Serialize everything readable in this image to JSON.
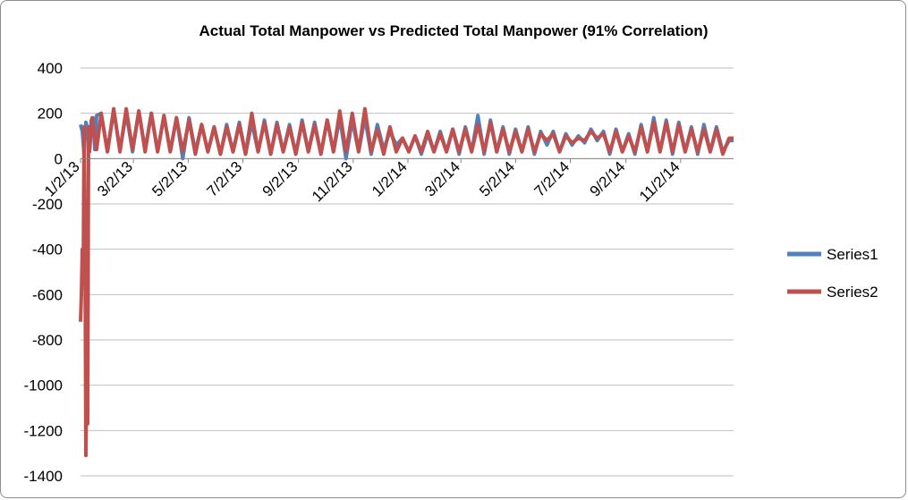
{
  "chart_data": {
    "type": "line",
    "title": "Actual Total Manpower vs Predicted Total Manpower (91% Correlation)",
    "xlabel": "",
    "ylabel": "",
    "ylim": [
      -1400,
      400
    ],
    "yticks": [
      400,
      200,
      0,
      -200,
      -400,
      -600,
      -800,
      -1000,
      -1200,
      -1400
    ],
    "ytick_labels": [
      "400",
      "200",
      "0",
      "-200",
      "-400",
      "-600",
      "-800",
      "-1000",
      "-1200",
      "-1400"
    ],
    "x_range": [
      "2013-01-02",
      "2014-12-31"
    ],
    "x_tick_labels": [
      "1/2/13",
      "3/2/13",
      "5/2/13",
      "7/2/13",
      "9/2/13",
      "11/2/13",
      "1/2/14",
      "3/2/14",
      "5/2/14",
      "7/2/14",
      "9/2/14",
      "11/2/14"
    ],
    "x_tick_dates": [
      "2013-01-02",
      "2013-03-02",
      "2013-05-02",
      "2013-07-02",
      "2013-09-02",
      "2013-11-02",
      "2014-01-02",
      "2014-03-02",
      "2014-05-02",
      "2014-07-02",
      "2014-09-02",
      "2014-11-02"
    ],
    "grid": true,
    "legend_position": "right",
    "series": [
      {
        "name": "Series1",
        "color": "#4f81bd",
        "points": [
          [
            "2013-01-02",
            150
          ],
          [
            "2013-01-04",
            120
          ],
          [
            "2013-01-06",
            20
          ],
          [
            "2013-01-08",
            160
          ],
          [
            "2013-01-10",
            130
          ],
          [
            "2013-01-12",
            30
          ],
          [
            "2013-01-14",
            170
          ],
          [
            "2013-01-16",
            180
          ],
          [
            "2013-01-18",
            40
          ],
          [
            "2013-01-20",
            190
          ],
          [
            "2013-01-25",
            200
          ],
          [
            "2013-02-01",
            30
          ],
          [
            "2013-02-08",
            210
          ],
          [
            "2013-02-15",
            40
          ],
          [
            "2013-02-22",
            200
          ],
          [
            "2013-03-01",
            30
          ],
          [
            "2013-03-08",
            210
          ],
          [
            "2013-03-15",
            40
          ],
          [
            "2013-03-22",
            200
          ],
          [
            "2013-03-29",
            30
          ],
          [
            "2013-04-05",
            190
          ],
          [
            "2013-04-12",
            30
          ],
          [
            "2013-04-19",
            180
          ],
          [
            "2013-04-26",
            0
          ],
          [
            "2013-05-03",
            180
          ],
          [
            "2013-05-10",
            30
          ],
          [
            "2013-05-17",
            150
          ],
          [
            "2013-05-24",
            30
          ],
          [
            "2013-05-31",
            140
          ],
          [
            "2013-06-07",
            20
          ],
          [
            "2013-06-14",
            150
          ],
          [
            "2013-06-21",
            30
          ],
          [
            "2013-06-28",
            160
          ],
          [
            "2013-07-05",
            20
          ],
          [
            "2013-07-12",
            160
          ],
          [
            "2013-07-19",
            30
          ],
          [
            "2013-07-26",
            170
          ],
          [
            "2013-08-02",
            20
          ],
          [
            "2013-08-09",
            160
          ],
          [
            "2013-08-16",
            30
          ],
          [
            "2013-08-23",
            150
          ],
          [
            "2013-08-30",
            20
          ],
          [
            "2013-09-06",
            170
          ],
          [
            "2013-09-13",
            30
          ],
          [
            "2013-09-20",
            160
          ],
          [
            "2013-09-27",
            20
          ],
          [
            "2013-10-04",
            170
          ],
          [
            "2013-10-11",
            30
          ],
          [
            "2013-10-18",
            180
          ],
          [
            "2013-10-25",
            0
          ],
          [
            "2013-11-01",
            170
          ],
          [
            "2013-11-08",
            30
          ],
          [
            "2013-11-15",
            180
          ],
          [
            "2013-11-22",
            20
          ],
          [
            "2013-11-29",
            150
          ],
          [
            "2013-12-06",
            40
          ],
          [
            "2013-12-13",
            120
          ],
          [
            "2013-12-20",
            60
          ],
          [
            "2013-12-27",
            90
          ],
          [
            "2014-01-03",
            30
          ],
          [
            "2014-01-10",
            100
          ],
          [
            "2014-01-17",
            20
          ],
          [
            "2014-01-24",
            110
          ],
          [
            "2014-01-31",
            30
          ],
          [
            "2014-02-07",
            120
          ],
          [
            "2014-02-14",
            30
          ],
          [
            "2014-02-21",
            130
          ],
          [
            "2014-02-28",
            20
          ],
          [
            "2014-03-07",
            140
          ],
          [
            "2014-03-14",
            30
          ],
          [
            "2014-03-21",
            190
          ],
          [
            "2014-03-28",
            20
          ],
          [
            "2014-04-04",
            170
          ],
          [
            "2014-04-11",
            30
          ],
          [
            "2014-04-18",
            140
          ],
          [
            "2014-04-25",
            20
          ],
          [
            "2014-05-02",
            130
          ],
          [
            "2014-05-09",
            30
          ],
          [
            "2014-05-16",
            140
          ],
          [
            "2014-05-23",
            20
          ],
          [
            "2014-05-30",
            120
          ],
          [
            "2014-06-06",
            60
          ],
          [
            "2014-06-13",
            120
          ],
          [
            "2014-06-20",
            30
          ],
          [
            "2014-06-27",
            110
          ],
          [
            "2014-07-04",
            60
          ],
          [
            "2014-07-11",
            100
          ],
          [
            "2014-07-18",
            70
          ],
          [
            "2014-07-25",
            130
          ],
          [
            "2014-08-01",
            80
          ],
          [
            "2014-08-08",
            120
          ],
          [
            "2014-08-15",
            20
          ],
          [
            "2014-08-22",
            130
          ],
          [
            "2014-08-29",
            30
          ],
          [
            "2014-09-05",
            110
          ],
          [
            "2014-09-12",
            20
          ],
          [
            "2014-09-19",
            150
          ],
          [
            "2014-09-26",
            30
          ],
          [
            "2014-10-03",
            180
          ],
          [
            "2014-10-10",
            30
          ],
          [
            "2014-10-17",
            170
          ],
          [
            "2014-10-24",
            20
          ],
          [
            "2014-10-31",
            160
          ],
          [
            "2014-11-07",
            30
          ],
          [
            "2014-11-14",
            140
          ],
          [
            "2014-11-21",
            20
          ],
          [
            "2014-11-28",
            150
          ],
          [
            "2014-12-05",
            30
          ],
          [
            "2014-12-12",
            140
          ],
          [
            "2014-12-19",
            30
          ],
          [
            "2014-12-26",
            80
          ],
          [
            "2014-12-31",
            80
          ]
        ]
      },
      {
        "name": "Series2",
        "color": "#c0504d",
        "points": [
          [
            "2013-01-02",
            -720
          ],
          [
            "2013-01-03",
            -600
          ],
          [
            "2013-01-04",
            -400
          ],
          [
            "2013-01-05",
            -560
          ],
          [
            "2013-01-06",
            140
          ],
          [
            "2013-01-07",
            -300
          ],
          [
            "2013-01-08",
            -1310
          ],
          [
            "2013-01-09",
            -900
          ],
          [
            "2013-01-10",
            -1170
          ],
          [
            "2013-01-11",
            140
          ],
          [
            "2013-01-12",
            30
          ],
          [
            "2013-01-15",
            180
          ],
          [
            "2013-01-20",
            40
          ],
          [
            "2013-01-25",
            200
          ],
          [
            "2013-02-01",
            30
          ],
          [
            "2013-02-08",
            220
          ],
          [
            "2013-02-15",
            30
          ],
          [
            "2013-02-22",
            220
          ],
          [
            "2013-03-01",
            40
          ],
          [
            "2013-03-08",
            210
          ],
          [
            "2013-03-15",
            30
          ],
          [
            "2013-03-22",
            200
          ],
          [
            "2013-03-29",
            30
          ],
          [
            "2013-04-05",
            190
          ],
          [
            "2013-04-12",
            30
          ],
          [
            "2013-04-19",
            180
          ],
          [
            "2013-04-26",
            30
          ],
          [
            "2013-05-03",
            170
          ],
          [
            "2013-05-10",
            20
          ],
          [
            "2013-05-17",
            150
          ],
          [
            "2013-05-24",
            30
          ],
          [
            "2013-05-31",
            140
          ],
          [
            "2013-06-07",
            20
          ],
          [
            "2013-06-14",
            140
          ],
          [
            "2013-06-21",
            30
          ],
          [
            "2013-06-28",
            150
          ],
          [
            "2013-07-05",
            20
          ],
          [
            "2013-07-12",
            200
          ],
          [
            "2013-07-19",
            30
          ],
          [
            "2013-07-26",
            160
          ],
          [
            "2013-08-02",
            20
          ],
          [
            "2013-08-09",
            150
          ],
          [
            "2013-08-16",
            30
          ],
          [
            "2013-08-23",
            140
          ],
          [
            "2013-08-30",
            20
          ],
          [
            "2013-09-06",
            160
          ],
          [
            "2013-09-13",
            30
          ],
          [
            "2013-09-20",
            150
          ],
          [
            "2013-09-27",
            20
          ],
          [
            "2013-10-04",
            170
          ],
          [
            "2013-10-11",
            30
          ],
          [
            "2013-10-18",
            210
          ],
          [
            "2013-10-25",
            30
          ],
          [
            "2013-11-01",
            200
          ],
          [
            "2013-11-08",
            30
          ],
          [
            "2013-11-15",
            220
          ],
          [
            "2013-11-22",
            30
          ],
          [
            "2013-11-29",
            130
          ],
          [
            "2013-12-06",
            20
          ],
          [
            "2013-12-13",
            140
          ],
          [
            "2013-12-20",
            30
          ],
          [
            "2013-12-27",
            90
          ],
          [
            "2014-01-03",
            30
          ],
          [
            "2014-01-10",
            100
          ],
          [
            "2014-01-17",
            30
          ],
          [
            "2014-01-24",
            120
          ],
          [
            "2014-01-31",
            30
          ],
          [
            "2014-02-07",
            110
          ],
          [
            "2014-02-14",
            30
          ],
          [
            "2014-02-21",
            130
          ],
          [
            "2014-02-28",
            30
          ],
          [
            "2014-03-07",
            130
          ],
          [
            "2014-03-14",
            30
          ],
          [
            "2014-03-21",
            150
          ],
          [
            "2014-03-28",
            30
          ],
          [
            "2014-04-04",
            160
          ],
          [
            "2014-04-11",
            30
          ],
          [
            "2014-04-18",
            130
          ],
          [
            "2014-04-25",
            30
          ],
          [
            "2014-05-02",
            120
          ],
          [
            "2014-05-09",
            30
          ],
          [
            "2014-05-16",
            130
          ],
          [
            "2014-05-23",
            30
          ],
          [
            "2014-05-30",
            110
          ],
          [
            "2014-06-06",
            80
          ],
          [
            "2014-06-13",
            110
          ],
          [
            "2014-06-20",
            30
          ],
          [
            "2014-06-27",
            100
          ],
          [
            "2014-07-04",
            70
          ],
          [
            "2014-07-11",
            90
          ],
          [
            "2014-07-18",
            80
          ],
          [
            "2014-07-25",
            120
          ],
          [
            "2014-08-01",
            90
          ],
          [
            "2014-08-08",
            110
          ],
          [
            "2014-08-15",
            30
          ],
          [
            "2014-08-22",
            120
          ],
          [
            "2014-08-29",
            30
          ],
          [
            "2014-09-05",
            100
          ],
          [
            "2014-09-12",
            30
          ],
          [
            "2014-09-19",
            140
          ],
          [
            "2014-09-26",
            30
          ],
          [
            "2014-10-03",
            160
          ],
          [
            "2014-10-10",
            30
          ],
          [
            "2014-10-17",
            160
          ],
          [
            "2014-10-24",
            30
          ],
          [
            "2014-10-31",
            150
          ],
          [
            "2014-11-07",
            30
          ],
          [
            "2014-11-14",
            130
          ],
          [
            "2014-11-21",
            30
          ],
          [
            "2014-11-28",
            130
          ],
          [
            "2014-12-05",
            30
          ],
          [
            "2014-12-12",
            130
          ],
          [
            "2014-12-19",
            20
          ],
          [
            "2014-12-26",
            90
          ],
          [
            "2014-12-31",
            90
          ]
        ]
      }
    ]
  }
}
